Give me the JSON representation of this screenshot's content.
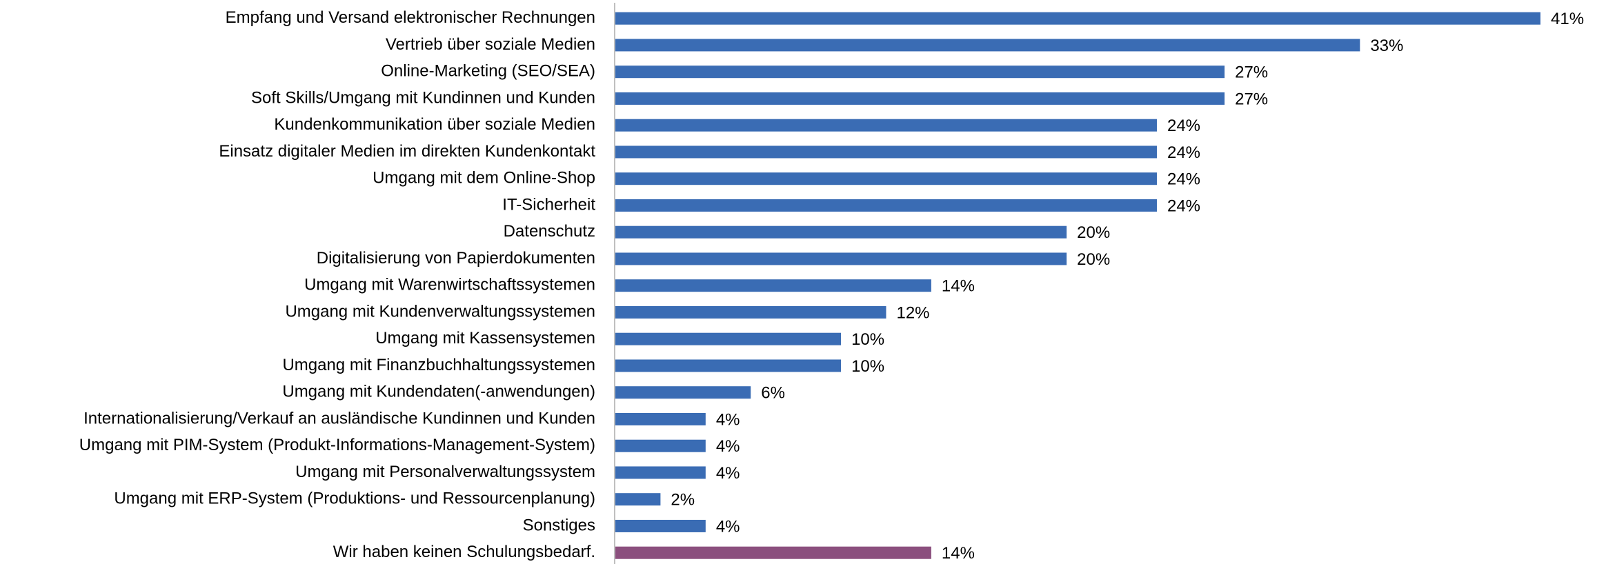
{
  "chart_data": {
    "type": "bar",
    "orientation": "horizontal",
    "categories": [
      "Empfang und Versand elektronischer Rechnungen",
      "Vertrieb über soziale Medien",
      "Online-Marketing (SEO/SEA)",
      "Soft Skills/Umgang mit Kundinnen und Kunden",
      "Kundenkommunikation über soziale Medien",
      "Einsatz digitaler Medien im direkten Kundenkontakt",
      "Umgang mit dem Online-Shop",
      "IT-Sicherheit",
      "Datenschutz",
      "Digitalisierung von Papierdokumenten",
      "Umgang mit Warenwirtschaftssystemen",
      "Umgang mit Kundenverwaltungssystemen",
      "Umgang mit Kassensystemen",
      "Umgang mit Finanzbuchhaltungssystemen",
      "Umgang mit Kundendaten(-anwendungen)",
      "Internationalisierung/Verkauf an ausländische Kundinnen und Kunden",
      "Umgang mit PIM-System (Produkt-Informations-Management-System)",
      "Umgang mit Personalverwaltungssystem",
      "Umgang mit ERP-System (Produktions- und Ressourcenplanung)",
      "Sonstiges",
      "Wir haben keinen Schulungsbedarf."
    ],
    "values": [
      41,
      33,
      27,
      27,
      24,
      24,
      24,
      24,
      20,
      20,
      14,
      12,
      10,
      10,
      6,
      4,
      4,
      4,
      2,
      4,
      14
    ],
    "value_labels": [
      "41%",
      "33%",
      "27%",
      "27%",
      "24%",
      "24%",
      "24%",
      "24%",
      "20%",
      "20%",
      "14%",
      "12%",
      "10%",
      "10%",
      "6%",
      "4%",
      "4%",
      "4%",
      "2%",
      "4%",
      "14%"
    ],
    "colors": [
      "#3a6cb4",
      "#3a6cb4",
      "#3a6cb4",
      "#3a6cb4",
      "#3a6cb4",
      "#3a6cb4",
      "#3a6cb4",
      "#3a6cb4",
      "#3a6cb4",
      "#3a6cb4",
      "#3a6cb4",
      "#3a6cb4",
      "#3a6cb4",
      "#3a6cb4",
      "#3a6cb4",
      "#3a6cb4",
      "#3a6cb4",
      "#3a6cb4",
      "#3a6cb4",
      "#3a6cb4",
      "#8b4f7e"
    ]
  }
}
